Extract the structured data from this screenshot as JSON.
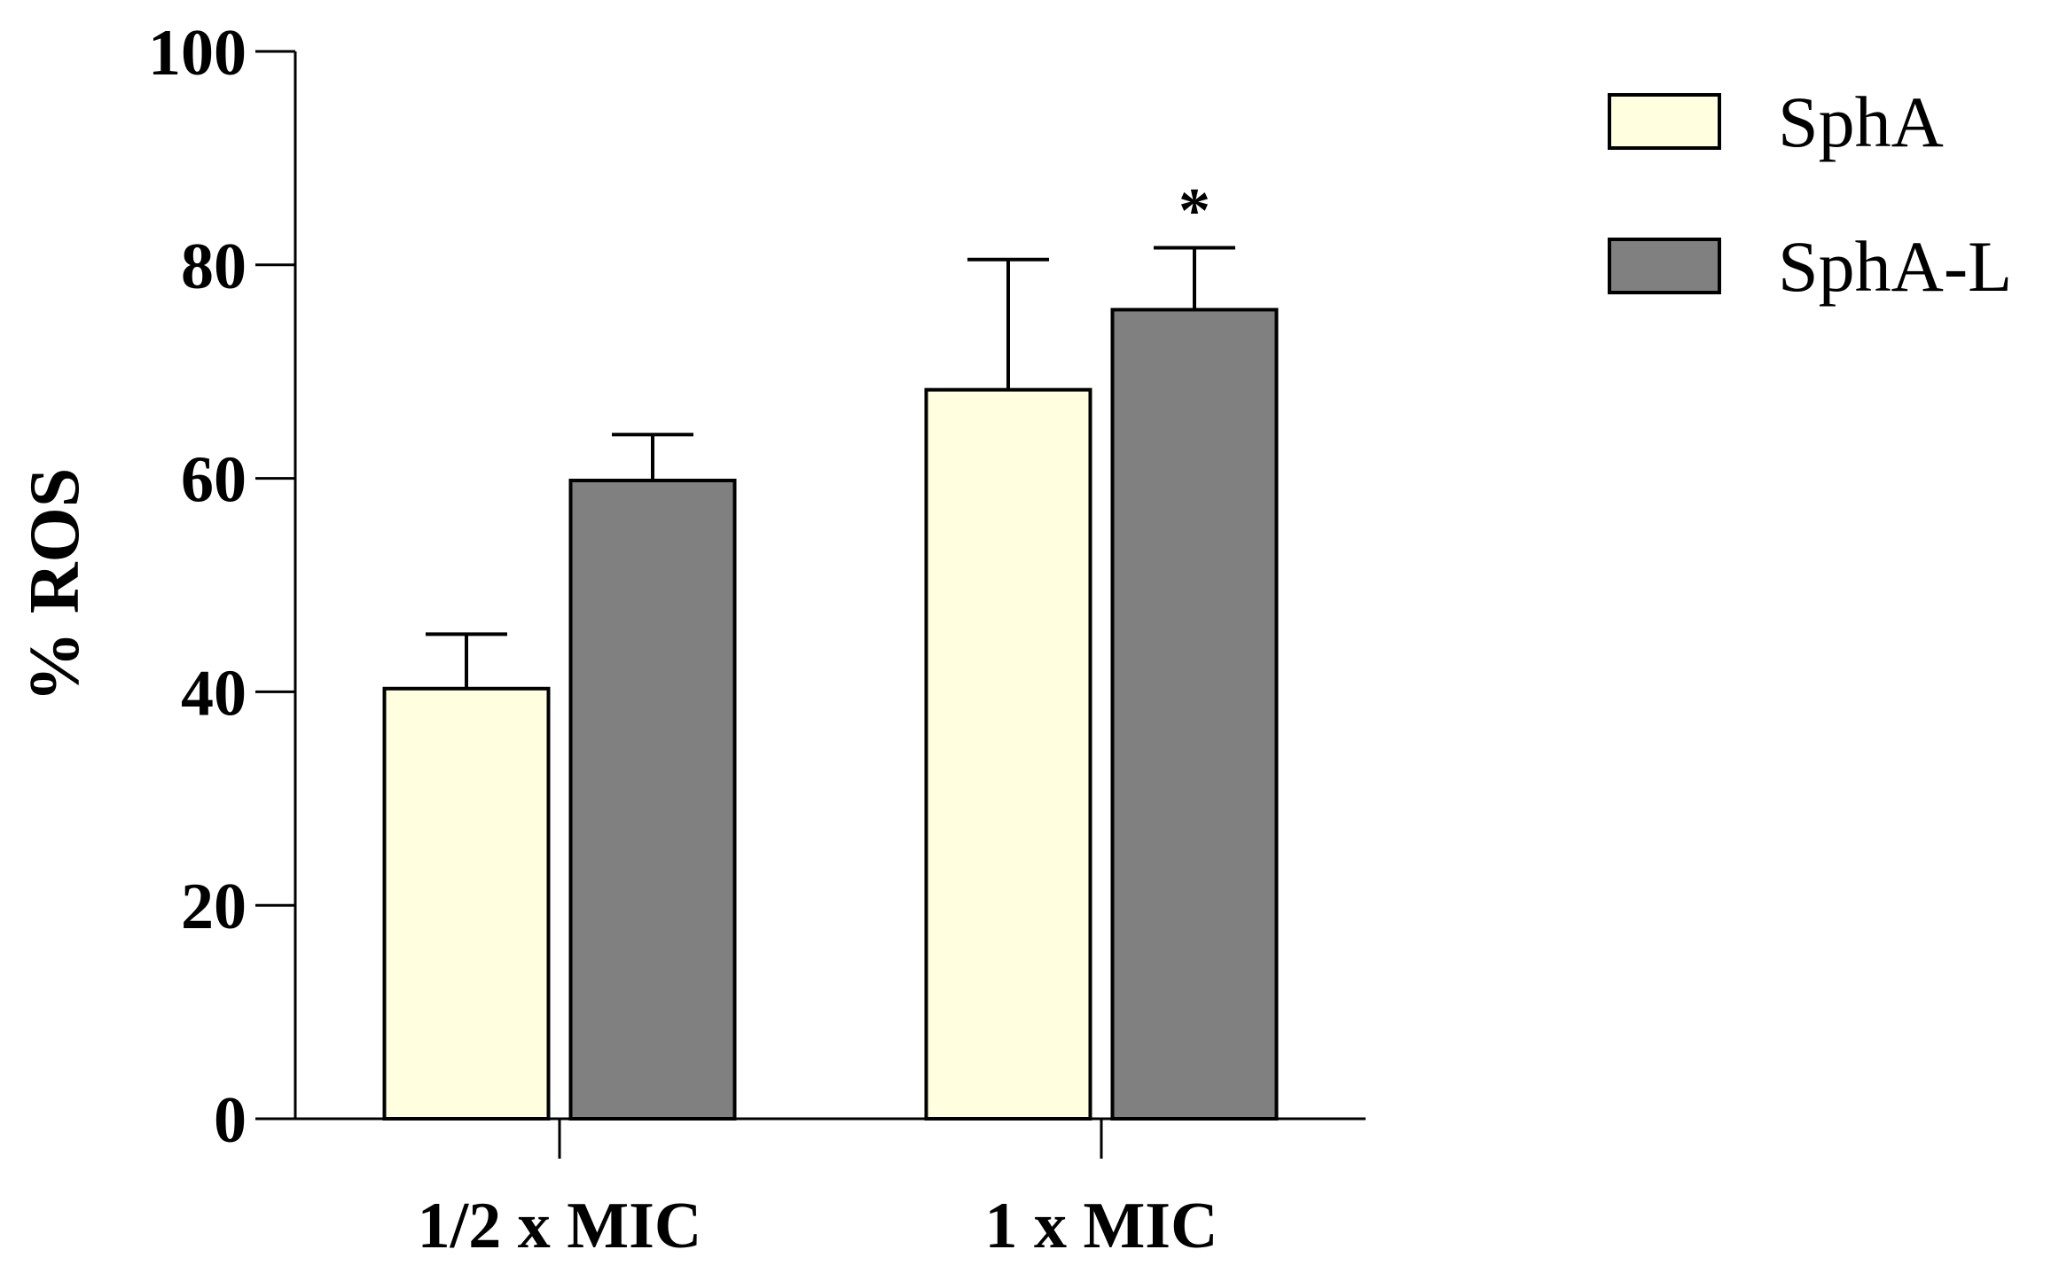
{
  "chart_data": {
    "type": "bar",
    "title": "",
    "xlabel": "",
    "ylabel": "% ROS",
    "ylim": [
      0,
      100
    ],
    "yticks": [
      0,
      20,
      40,
      60,
      80,
      100
    ],
    "categories": [
      "1/2 x MIC",
      "1 x MIC"
    ],
    "series": [
      {
        "name": "SphA",
        "values": [
          40.3,
          68.3
        ],
        "errors": [
          5.1,
          12.2
        ],
        "color": "#FFFFE0"
      },
      {
        "name": "SphA-L",
        "values": [
          59.8,
          75.8
        ],
        "errors": [
          4.3,
          5.8
        ],
        "color": "#808080"
      }
    ],
    "annotations": [
      {
        "category_index": 1,
        "series_index": 1,
        "text": "*"
      }
    ],
    "legend_placement": "top-right",
    "grid": false
  }
}
